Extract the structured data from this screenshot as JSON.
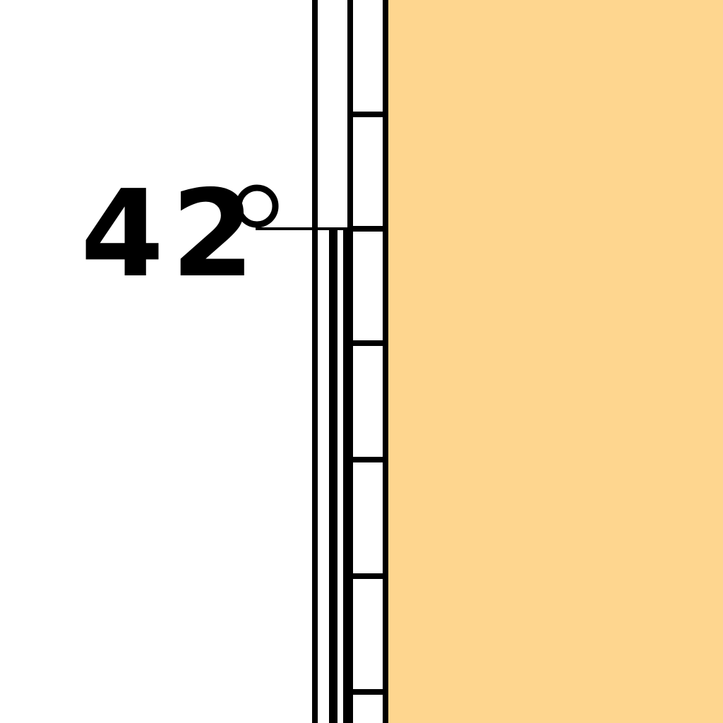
{
  "thermometer": {
    "reading_label": "42",
    "fill_color": "#fed68f",
    "line_color": "#000000",
    "background_color": "#ffffff"
  }
}
